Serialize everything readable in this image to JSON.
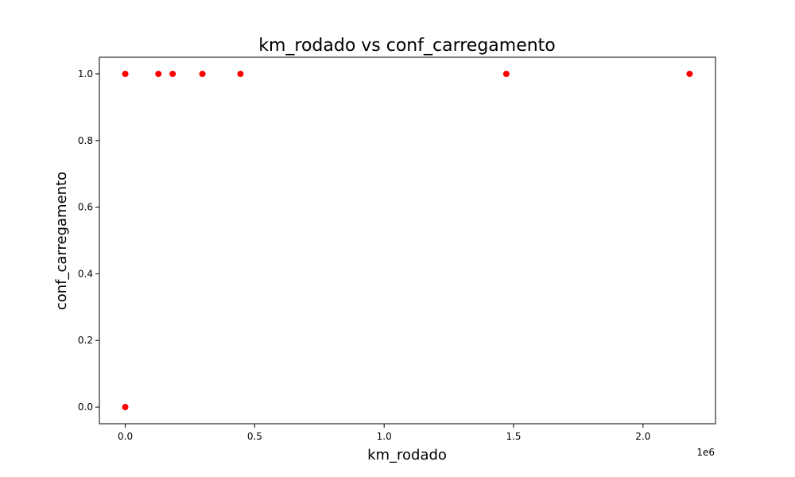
{
  "chart_data": {
    "type": "scatter",
    "title": "km_rodado vs conf_carregamento",
    "xlabel": "km_rodado",
    "ylabel": "conf_carregamento",
    "x_offset_label": "1e6",
    "xlim": [
      -0.1,
      2.28
    ],
    "ylim": [
      -0.05,
      1.05
    ],
    "x_ticks": [
      0.0,
      0.5,
      1.0,
      1.5,
      2.0
    ],
    "x_tick_labels": [
      "0.0",
      "0.5",
      "1.0",
      "1.5",
      "2.0"
    ],
    "y_ticks": [
      0.0,
      0.2,
      0.4,
      0.6,
      0.8,
      1.0
    ],
    "y_tick_labels": [
      "0.0",
      "0.2",
      "0.4",
      "0.6",
      "0.8",
      "1.0"
    ],
    "grid": false,
    "marker_color": "#ff0000",
    "points": [
      {
        "x": 0.0,
        "y": 0.0
      },
      {
        "x": 0.0,
        "y": 1.0
      },
      {
        "x": 0.128,
        "y": 1.0
      },
      {
        "x": 0.183,
        "y": 1.0
      },
      {
        "x": 0.298,
        "y": 1.0
      },
      {
        "x": 0.445,
        "y": 1.0
      },
      {
        "x": 1.472,
        "y": 1.0
      },
      {
        "x": 2.18,
        "y": 1.0
      }
    ]
  }
}
